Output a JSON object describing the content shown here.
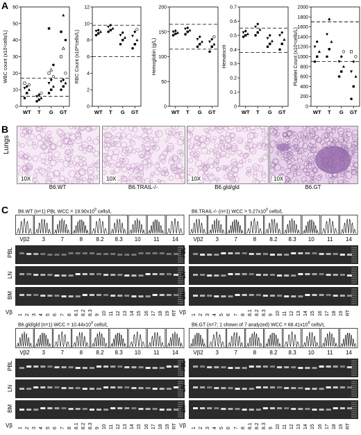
{
  "panels": {
    "a": "A",
    "b": "B",
    "c": "C"
  },
  "categories": [
    "WT",
    "T",
    "G",
    "GT"
  ],
  "chart_data": [
    {
      "type": "scatter",
      "ylabel": "WBC count (x10⁹cells/L)",
      "yticks": [
        "0",
        "10",
        "20",
        "30",
        "40",
        "50",
        "60"
      ],
      "ylim": [
        0,
        60
      ],
      "refs": [
        17,
        6
      ],
      "points": {
        "WT": [
          5,
          8,
          10,
          11,
          12,
          13,
          14
        ],
        "T": [
          3,
          4,
          5,
          6,
          7,
          8
        ],
        "G": [
          8,
          10,
          12,
          14,
          16,
          18,
          20,
          22,
          25,
          47
        ],
        "GT": [
          10,
          12,
          14,
          15,
          16,
          20,
          30,
          35,
          40,
          45,
          55
        ]
      }
    },
    {
      "type": "scatter",
      "ylabel": "RBC Count (x10¹²cells/L)",
      "yticks": [
        "0",
        "2",
        "4",
        "6",
        "8",
        "10",
        "12"
      ],
      "ylim": [
        0,
        12
      ],
      "refs": [
        9.8,
        6
      ],
      "points": {
        "WT": [
          8.6,
          8.8,
          9,
          9.1,
          9.2
        ],
        "T": [
          9,
          9.2,
          9.4,
          9.6,
          9.8
        ],
        "G": [
          7.5,
          8,
          8.3,
          8.6,
          8.9
        ],
        "GT": [
          7,
          7.5,
          8,
          8.5,
          9,
          9.3
        ]
      }
    },
    {
      "type": "scatter",
      "ylabel": "Hemoglobin (g/L)",
      "yticks": [
        "0",
        "50",
        "100",
        "150",
        "200"
      ],
      "ylim": [
        0,
        200
      ],
      "refs": [
        165,
        115
      ],
      "points": {
        "WT": [
          143,
          146,
          148,
          150,
          152
        ],
        "T": [
          145,
          150,
          153,
          156,
          158
        ],
        "G": [
          120,
          125,
          130,
          135,
          140
        ],
        "GT": [
          110,
          120,
          125,
          130,
          135,
          140
        ]
      }
    },
    {
      "type": "scatter",
      "ylabel": "Hematocrit",
      "yticks": [
        "0",
        "0.1",
        "0.2",
        "0.3",
        "0.4",
        "0.5",
        "0.6",
        "0.7"
      ],
      "ylim": [
        0,
        0.7
      ],
      "refs": [
        0.55,
        0.38
      ],
      "points": {
        "WT": [
          0.49,
          0.5,
          0.51,
          0.52,
          0.53
        ],
        "T": [
          0.5,
          0.52,
          0.54,
          0.56,
          0.58
        ],
        "G": [
          0.42,
          0.44,
          0.46,
          0.48,
          0.5
        ],
        "GT": [
          0.4,
          0.44,
          0.47,
          0.5,
          0.52
        ]
      }
    },
    {
      "type": "scatter",
      "ylabel": "Platelet Count (x10⁹cells/L)",
      "yticks": [
        "0",
        "200",
        "400",
        "600",
        "800",
        "1000",
        "1200",
        "1400",
        "1600",
        "1800",
        "2000"
      ],
      "ylim": [
        0,
        2000
      ],
      "refs": [
        1700,
        900
      ],
      "points": {
        "WT": [
          900,
          1000,
          1100,
          1200,
          1300
        ],
        "T": [
          1000,
          1150,
          1300,
          1450,
          1750
        ],
        "G": [
          600,
          700,
          800,
          900,
          1000,
          1100
        ],
        "GT": [
          150,
          400,
          600,
          700,
          900,
          1000,
          1100
        ]
      }
    }
  ],
  "micro": {
    "side_label": "Lungs",
    "mag": "10X",
    "names": [
      "B6.WT",
      "B6.TRAIL-/-",
      "B6.gld/gld",
      "B6.GT"
    ]
  },
  "gels": [
    {
      "title": "B6.WT (n=1)  PBL WCC = 19.90x10",
      "sup": "9",
      "tail": " cells/L"
    },
    {
      "title": "B6.TRAIL-/- (n=1)  WCC = 5.27x10",
      "sup": "9",
      "tail": " cells/L"
    },
    {
      "title": "B6.gld/gld  (n=1)  WCC = 10.44x10",
      "sup": "9",
      "tail": " cells/L"
    },
    {
      "title": "B6.GT  (n=7; 1 shown of 7 analyzed) WCC = 68.41x10",
      "sup": "9",
      "tail": " cells/L"
    }
  ],
  "vbeta_top": [
    "Vβ2",
    "3",
    "7",
    "8",
    "8.2",
    "8.3",
    "10",
    "11",
    "14"
  ],
  "lanes": [
    "PBL",
    "LN",
    "BM"
  ],
  "vlabel": "Vβ",
  "vnums": [
    "1",
    "2",
    "3",
    "4",
    "5",
    "6",
    "7",
    "8",
    "8.1",
    "8.2",
    "8.3",
    "9",
    "10",
    "11",
    "12",
    "13",
    "14",
    "15",
    "16",
    "17",
    "18",
    "19",
    "RT"
  ]
}
